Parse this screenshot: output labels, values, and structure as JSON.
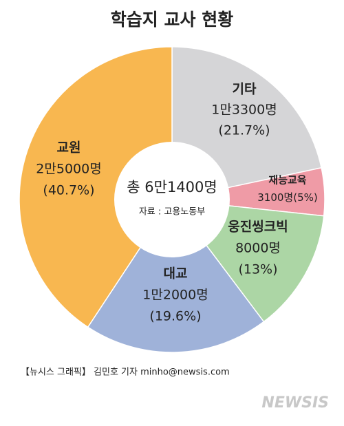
{
  "chart_data": {
    "type": "donut",
    "title": "학습지 교사 현황",
    "categories": [
      "기타",
      "재능교육",
      "웅진씽크빅",
      "대교",
      "교원"
    ],
    "values": [
      13300,
      3100,
      8000,
      12000,
      25000
    ],
    "value_labels": [
      "1만3300명",
      "3100명",
      "8000명",
      "1만2000명",
      "2만5000명"
    ],
    "percents": [
      21.7,
      5,
      13,
      19.6,
      40.7
    ],
    "percent_labels": [
      "(21.7%)",
      "(5%)",
      "(13%)",
      "(19.6%)",
      "(40.7%)"
    ],
    "colors": [
      "#d5d5d7",
      "#ef9ba6",
      "#acd6a5",
      "#9fb2d9",
      "#f8b750"
    ],
    "center_label": "총 6만1400명",
    "source": "자료 : 고용노동부",
    "credit": "【뉴시스 그래픽】 김민호 기자 minho@newsis.com",
    "watermark": "NEWSIS"
  }
}
